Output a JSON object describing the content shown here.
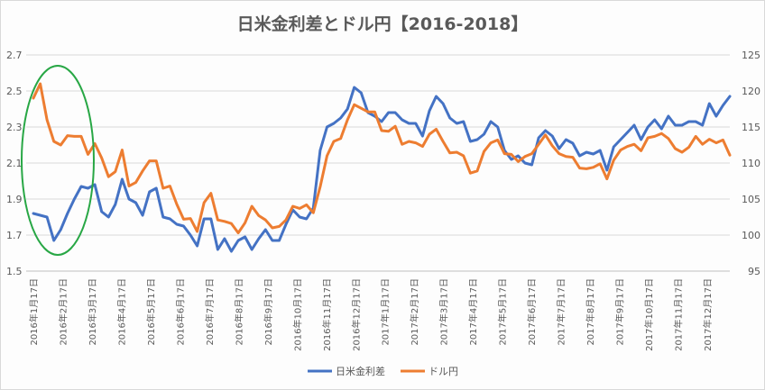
{
  "chart_data": {
    "type": "line",
    "title": "日米金利差とドル円【2016-2018】",
    "colors": {
      "spread": "#4472c4",
      "usdjpy": "#ed7d31",
      "annotation": "#28a745",
      "grid": "#d9d9d9"
    },
    "y_left": {
      "lim": [
        1.5,
        2.7
      ],
      "ticks": [
        "1.5",
        "1.7",
        "1.9",
        "2.1",
        "2.3",
        "2.5",
        "2.7"
      ]
    },
    "y_right": {
      "lim": [
        95,
        125
      ],
      "ticks": [
        "95",
        "100",
        "105",
        "110",
        "115",
        "120",
        "125"
      ]
    },
    "x_tick_labels": [
      "2016年1月17日",
      "2016年2月17日",
      "2016年3月17日",
      "2016年4月17日",
      "2016年5月17日",
      "2016年6月17日",
      "2016年7月17日",
      "2016年8月17日",
      "2016年9月17日",
      "2016年10月17日",
      "2016年11月17日",
      "2016年12月17日",
      "2017年1月17日",
      "2017年2月17日",
      "2017年3月17日",
      "2017年4月17日",
      "2017年5月17日",
      "2017年6月17日",
      "2017年7月17日",
      "2017年8月17日",
      "2017年9月17日",
      "2017年10月17日",
      "2017年11月17日",
      "2017年12月17日"
    ],
    "grid": true,
    "legend_position": "bottom",
    "annotation": {
      "shape": "ellipse",
      "period": "2016年1月17日 - 2016年3月17日"
    },
    "series": [
      {
        "name": "日米金利差",
        "axis": "left",
        "values": [
          1.82,
          1.81,
          1.8,
          1.67,
          1.73,
          1.82,
          1.9,
          1.97,
          1.96,
          1.98,
          1.83,
          1.8,
          1.87,
          2.01,
          1.9,
          1.88,
          1.81,
          1.94,
          1.96,
          1.8,
          1.79,
          1.76,
          1.75,
          1.7,
          1.64,
          1.79,
          1.79,
          1.62,
          1.68,
          1.61,
          1.67,
          1.69,
          1.62,
          1.68,
          1.73,
          1.67,
          1.67,
          1.76,
          1.84,
          1.8,
          1.79,
          1.85,
          2.17,
          2.3,
          2.32,
          2.35,
          2.4,
          2.52,
          2.49,
          2.38,
          2.36,
          2.33,
          2.38,
          2.38,
          2.34,
          2.32,
          2.32,
          2.25,
          2.39,
          2.47,
          2.43,
          2.35,
          2.32,
          2.33,
          2.22,
          2.23,
          2.26,
          2.33,
          2.3,
          2.17,
          2.12,
          2.14,
          2.1,
          2.09,
          2.24,
          2.28,
          2.25,
          2.18,
          2.23,
          2.21,
          2.14,
          2.16,
          2.15,
          2.17,
          2.06,
          2.19,
          2.23,
          2.27,
          2.31,
          2.23,
          2.3,
          2.34,
          2.29,
          2.36,
          2.31,
          2.31,
          2.33,
          2.33,
          2.31,
          2.43,
          2.36,
          2.42,
          2.47
        ]
      },
      {
        "name": "ドル円",
        "axis": "right",
        "values": [
          119.0,
          121.0,
          116.0,
          113.0,
          112.5,
          113.8,
          113.7,
          113.7,
          111.2,
          112.7,
          110.7,
          108.1,
          108.8,
          111.8,
          106.8,
          107.3,
          108.9,
          110.3,
          110.3,
          106.5,
          106.8,
          104.3,
          102.2,
          102.3,
          100.5,
          104.5,
          105.8,
          102.1,
          101.9,
          101.6,
          100.3,
          101.7,
          104.0,
          102.7,
          102.1,
          101.0,
          101.2,
          102.1,
          104.0,
          103.7,
          104.2,
          103.1,
          106.7,
          111.0,
          113.0,
          113.4,
          116.0,
          118.1,
          117.6,
          117.1,
          117.1,
          114.5,
          114.4,
          115.1,
          112.6,
          113.0,
          112.8,
          112.3,
          114.0,
          114.7,
          113.0,
          111.4,
          111.5,
          111.0,
          108.6,
          108.9,
          111.6,
          112.8,
          113.2,
          111.3,
          111.2,
          110.2,
          110.9,
          111.3,
          112.6,
          113.9,
          112.4,
          111.3,
          110.9,
          110.8,
          109.3,
          109.2,
          109.4,
          109.9,
          107.8,
          110.4,
          111.8,
          112.3,
          112.6,
          111.7,
          113.5,
          113.7,
          114.1,
          113.4,
          112.0,
          111.5,
          112.2,
          113.7,
          112.6,
          113.3,
          112.8,
          113.2,
          111.1
        ]
      }
    ]
  }
}
